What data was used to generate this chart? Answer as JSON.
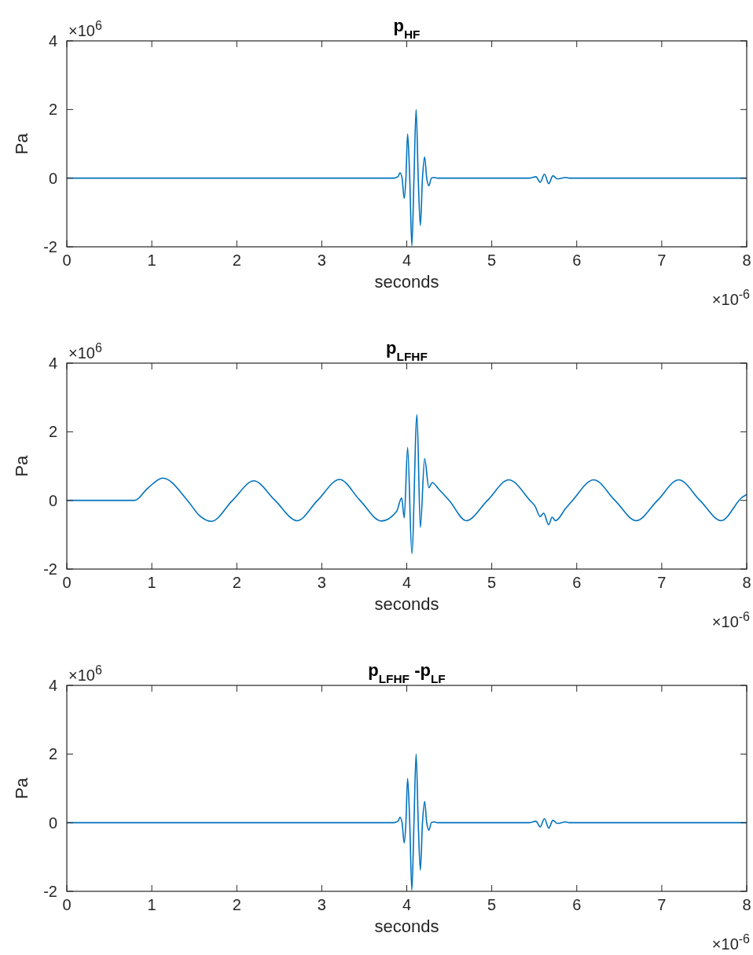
{
  "chart_data": [
    {
      "type": "line",
      "title": "p$_{HF}$",
      "xlabel": "seconds",
      "ylabel": "Pa",
      "annotations": [
        "×10$^{6}$",
        "×10$^{-6}$"
      ],
      "grid": false,
      "xlim": [
        0,
        8
      ],
      "xticks": [
        0,
        1,
        2,
        3,
        4,
        5,
        6,
        7,
        8
      ],
      "ylim": [
        -2,
        4
      ],
      "yticks": [
        -2,
        0,
        2,
        4
      ],
      "series": [
        {
          "color": "#0072bd",
          "x": [
            0,
            3.85,
            3.9,
            3.92,
            3.945,
            3.97,
            3.99,
            4.01,
            4.035,
            4.06,
            4.085,
            4.11,
            4.135,
            4.16,
            4.185,
            4.21,
            4.235,
            4.26,
            4.29,
            4.32,
            4.36,
            5.44,
            5.52,
            5.57,
            5.62,
            5.67,
            5.72,
            5.77,
            5.87,
            5.91,
            8
          ],
          "values": [
            0,
            0,
            0.05,
            0.16,
            0,
            -0.59,
            0,
            1.29,
            0,
            -1.97,
            0,
            2.0,
            0,
            -1.38,
            0,
            0.62,
            0,
            -0.22,
            0,
            0.02,
            0,
            0,
            0.04,
            -0.12,
            0.12,
            -0.16,
            0.07,
            -0.02,
            0.02,
            0,
            0
          ]
        }
      ]
    },
    {
      "type": "line",
      "title": "p$_{LFHF}$",
      "xlabel": "seconds",
      "ylabel": "Pa",
      "annotations": [
        "×10$^{6}$",
        "×10$^{-6}$"
      ],
      "grid": false,
      "xlim": [
        0,
        8
      ],
      "xticks": [
        0,
        1,
        2,
        3,
        4,
        5,
        6,
        7,
        8
      ],
      "ylim": [
        -2,
        4
      ],
      "yticks": [
        -2,
        0,
        2,
        4
      ],
      "series": [
        {
          "color": "#0072bd",
          "x": [
            0,
            0.8,
            0.95,
            1.13,
            1.42,
            1.56,
            1.7,
            1.95,
            2.2,
            2.45,
            2.71,
            2.95,
            3.21,
            3.45,
            3.7,
            3.88,
            3.94,
            3.97,
            4.01,
            4.06,
            4.12,
            4.16,
            4.21,
            4.26,
            4.3,
            4.38,
            4.5,
            4.7,
            4.95,
            5.2,
            5.45,
            5.51,
            5.57,
            5.61,
            5.67,
            5.71,
            5.75,
            5.87,
            5.95,
            6.2,
            6.45,
            6.7,
            6.95,
            7.2,
            7.45,
            7.7,
            7.95,
            8
          ],
          "values": [
            0,
            0,
            0.35,
            0.65,
            0,
            -0.44,
            -0.61,
            0,
            0.57,
            0,
            -0.59,
            0,
            0.61,
            0,
            -0.6,
            -0.32,
            0.07,
            -0.51,
            1.54,
            -1.55,
            2.5,
            -0.79,
            1.22,
            0.37,
            0.52,
            0.32,
            0,
            -0.59,
            0,
            0.6,
            0,
            -0.17,
            -0.47,
            -0.37,
            -0.71,
            -0.49,
            -0.59,
            -0.23,
            0,
            0.6,
            0,
            -0.59,
            0,
            0.6,
            0,
            -0.59,
            0.1,
            0.17
          ]
        }
      ]
    },
    {
      "type": "line",
      "title": "p$_{LFHF}$ -p$_{LF}$",
      "xlabel": "seconds",
      "ylabel": "Pa",
      "annotations": [
        "×10$^{6}$",
        "×10$^{-6}$"
      ],
      "grid": false,
      "xlim": [
        0,
        8
      ],
      "xticks": [
        0,
        1,
        2,
        3,
        4,
        5,
        6,
        7,
        8
      ],
      "ylim": [
        -2,
        4
      ],
      "yticks": [
        -2,
        0,
        2,
        4
      ],
      "series": [
        {
          "color": "#0072bd",
          "x": [
            0,
            3.85,
            3.9,
            3.92,
            3.945,
            3.97,
            3.99,
            4.01,
            4.035,
            4.06,
            4.085,
            4.11,
            4.135,
            4.16,
            4.185,
            4.21,
            4.235,
            4.26,
            4.29,
            4.32,
            4.36,
            5.44,
            5.52,
            5.57,
            5.62,
            5.67,
            5.72,
            5.77,
            5.87,
            5.91,
            8
          ],
          "values": [
            0,
            0,
            0.05,
            0.16,
            0,
            -0.59,
            0,
            1.29,
            0,
            -1.97,
            0,
            2.0,
            0,
            -1.38,
            0,
            0.62,
            0,
            -0.22,
            0,
            0.02,
            0,
            0,
            0.04,
            -0.12,
            0.12,
            -0.16,
            0.07,
            -0.02,
            0.02,
            0,
            0
          ]
        }
      ]
    }
  ]
}
